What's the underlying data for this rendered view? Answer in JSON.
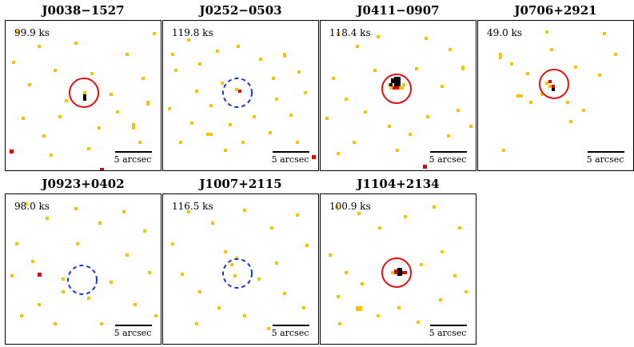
{
  "colors": {
    "low": "#f7c200",
    "mid": "#dd0000",
    "high": "#000000",
    "solid_circle": "#e01010",
    "dashed_circle": "#1a33dd"
  },
  "panels": [
    {
      "title": "J0038−1527",
      "exposure": "99.9 ks",
      "scalebar": "5 arcsec",
      "circle_style": "solid"
    },
    {
      "title": "J0252−0503",
      "exposure": "119.8 ks",
      "scalebar": "5 arcsec",
      "circle_style": "dashed"
    },
    {
      "title": "J0411−0907",
      "exposure": "118.4 ks",
      "scalebar": "5 arcsec",
      "circle_style": "solid"
    },
    {
      "title": "J0706+2921",
      "exposure": "49.0 ks",
      "scalebar": "5 arcsec",
      "circle_style": "solid"
    },
    {
      "title": "J0923+0402",
      "exposure": "98.0 ks",
      "scalebar": "5 arcsec",
      "circle_style": "dashed"
    },
    {
      "title": "J1007+2115",
      "exposure": "116.5 ks",
      "scalebar": "5 arcsec",
      "circle_style": "dashed"
    },
    {
      "title": "J1104+2134",
      "exposure": "100.9 ks",
      "scalebar": "5 arcsec",
      "circle_style": "solid"
    }
  ]
}
